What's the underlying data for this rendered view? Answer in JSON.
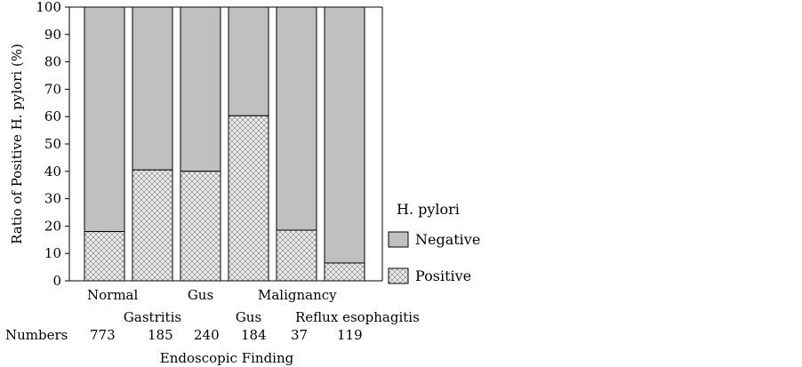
{
  "chart_data": {
    "type": "bar",
    "stacked": true,
    "percent_stacked": true,
    "ylabel": "Ratio of Positive H. pylori (%)",
    "xlabel": "Endoscopic Finding",
    "ylim": [
      0,
      100
    ],
    "yticks": [
      0,
      10,
      20,
      30,
      40,
      50,
      60,
      70,
      80,
      90,
      100
    ],
    "categories": [
      "Normal",
      "Gastritis",
      "Gus",
      "Gus",
      "Malignancy",
      "Reflux esophagitis"
    ],
    "numbers_label": "Numbers",
    "numbers": [
      "773",
      "185",
      "240",
      "184",
      "37",
      "119"
    ],
    "legend_title": "H. pylori",
    "legend_position": "right",
    "series": [
      {
        "name": "Positive",
        "values": [
          18,
          40.5,
          40,
          60.3,
          18.5,
          6.5
        ],
        "color": "#e6e6e6",
        "pattern": "crosshatch"
      },
      {
        "name": "Negative",
        "values": [
          82,
          59.5,
          60,
          39.7,
          81.5,
          93.5
        ],
        "color": "#c0c0c0"
      }
    ]
  }
}
